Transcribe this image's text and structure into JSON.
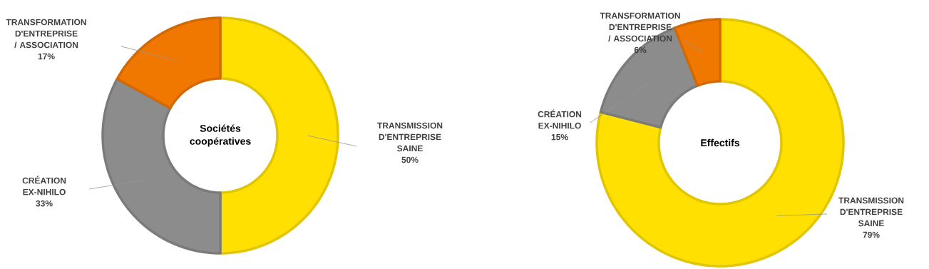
{
  "chart_data": [
    {
      "type": "donut",
      "title": "Sociétés coopératives",
      "categories": [
        "TRANSMISSION D'ENTREPRISE SAINE",
        "CRÉATION EX-NIHILO",
        "TRANSFORMATION D'ENTREPRISE / ASSOCIATION"
      ],
      "values": [
        50,
        33,
        17
      ],
      "value_labels": [
        "50%",
        "33%",
        "17%"
      ],
      "colors": [
        "#ffe000",
        "#8c8c8c",
        "#f07800"
      ]
    },
    {
      "type": "donut",
      "title": "Effectifs",
      "categories": [
        "TRANSMISSION D'ENTREPRISE SAINE",
        "CRÉATION EX-NIHILO",
        "TRANSFORMATION D'ENTREPRISE / ASSOCIATION"
      ],
      "values": [
        79,
        15,
        6
      ],
      "value_labels": [
        "79%",
        "15%",
        "6%"
      ],
      "colors": [
        "#ffe000",
        "#8c8c8c",
        "#f07800"
      ]
    }
  ]
}
